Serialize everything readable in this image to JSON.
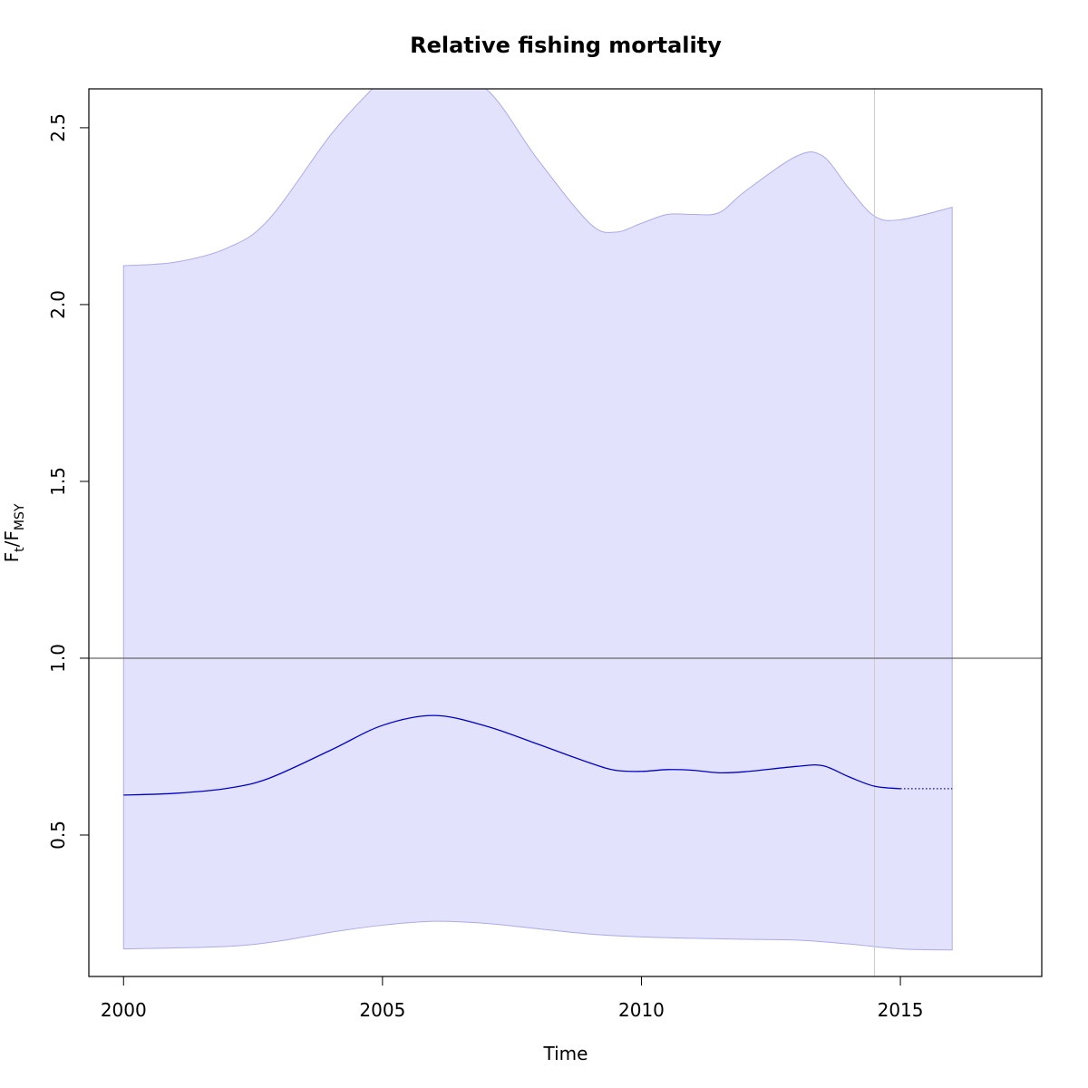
{
  "chart_data": {
    "type": "line",
    "title": "Relative fishing mortality",
    "xlabel": "Time",
    "ylabel": {
      "main1": "F",
      "sub1": "t",
      "sep": "/",
      "main2": "F",
      "sub2": "MSY"
    },
    "xlim": [
      1999.33,
      2017.73
    ],
    "ylim": [
      0.1,
      2.61
    ],
    "x_ticks": [
      2000,
      2005,
      2010,
      2015
    ],
    "x_tick_labels": [
      "2000",
      "2005",
      "2010",
      "2015"
    ],
    "y_ticks": [
      0.5,
      1.0,
      1.5,
      2.0,
      2.5
    ],
    "y_tick_labels": [
      "0.5",
      "1.0",
      "1.5",
      "2.0",
      "2.5"
    ],
    "reference_line_y": 1.0,
    "last_data_marker_x": 2014.5,
    "grid": false,
    "legend": "none",
    "colors": {
      "line": "#0000cd",
      "band_fill": "#e2e2fc",
      "band_edge": "#aaaaee",
      "reference": "#666666",
      "marker": "#cccccc"
    },
    "series": [
      {
        "role": "estimate",
        "x": [
          2000,
          2001,
          2002,
          2002.8,
          2004,
          2005,
          2006,
          2007,
          2008,
          2009,
          2009.5,
          2010,
          2010.5,
          2011,
          2011.5,
          2012,
          2013,
          2013.5,
          2014,
          2014.5,
          2015
        ],
        "y": [
          0.613,
          0.618,
          0.632,
          0.66,
          0.74,
          0.81,
          0.838,
          0.808,
          0.757,
          0.704,
          0.683,
          0.68,
          0.685,
          0.683,
          0.676,
          0.679,
          0.694,
          0.696,
          0.665,
          0.638,
          0.631
        ]
      },
      {
        "role": "forecast",
        "x": [
          2015,
          2016
        ],
        "y": [
          0.631,
          0.631
        ]
      },
      {
        "role": "upper",
        "x": [
          2000,
          2001,
          2002,
          2002.8,
          2004,
          2004.8,
          2005,
          2006,
          2007,
          2008,
          2009,
          2009.5,
          2010,
          2010.5,
          2011,
          2011.5,
          2012,
          2013,
          2013.5,
          2014,
          2014.5,
          2015,
          2016
        ],
        "y": [
          2.11,
          2.12,
          2.16,
          2.24,
          2.48,
          2.61,
          2.64,
          2.66,
          2.61,
          2.41,
          2.23,
          2.205,
          2.23,
          2.255,
          2.255,
          2.26,
          2.32,
          2.42,
          2.42,
          2.33,
          2.25,
          2.24,
          2.275
        ]
      },
      {
        "role": "lower",
        "x": [
          2000,
          2002,
          2003,
          2004,
          2005,
          2006,
          2007,
          2008,
          2009,
          2010,
          2011,
          2012,
          2013,
          2014,
          2015,
          2016
        ],
        "y": [
          0.178,
          0.185,
          0.2,
          0.225,
          0.245,
          0.256,
          0.25,
          0.235,
          0.22,
          0.212,
          0.208,
          0.205,
          0.203,
          0.192,
          0.178,
          0.175
        ]
      }
    ]
  }
}
